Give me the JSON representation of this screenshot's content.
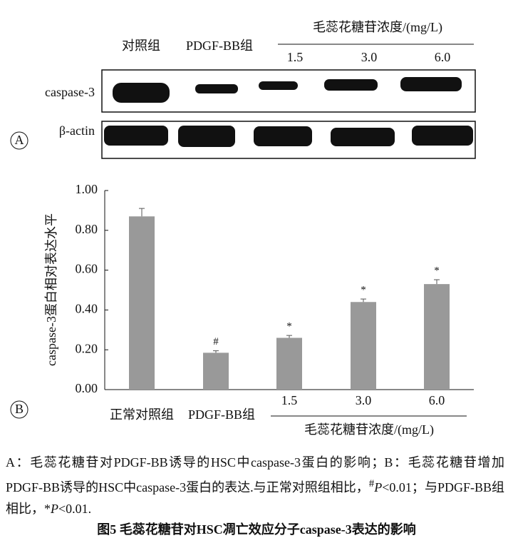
{
  "panel_a": {
    "label": "A",
    "control_label": "对照组",
    "model_label": "PDGF-BB组",
    "dose_group_label": "毛蕊花糖苷浓度/(mg/L)",
    "doses": [
      "1.5",
      "3.0",
      "6.0"
    ],
    "rows": [
      "caspase-3",
      "β-actin"
    ]
  },
  "chart_data": {
    "type": "bar",
    "panel_label": "B",
    "y_label": "caspase-3蛋白相对表达水平",
    "categories": [
      "正常对照组",
      "PDGF-BB组",
      "1.5",
      "3.0",
      "6.0"
    ],
    "group_label": "毛蕊花糖苷浓度/(mg/L)",
    "values": [
      0.87,
      0.185,
      0.26,
      0.44,
      0.53
    ],
    "errors": [
      0.04,
      0.01,
      0.012,
      0.015,
      0.022
    ],
    "markers": [
      null,
      "#",
      "*",
      "*",
      "*"
    ],
    "color": "#999999",
    "ylim": [
      0,
      1
    ],
    "yticks": [
      {
        "value": 0,
        "label": "0.00"
      },
      {
        "value": 0.2,
        "label": "0.20"
      },
      {
        "value": 0.4,
        "label": "0.40"
      },
      {
        "value": 0.6,
        "label": "0.60"
      },
      {
        "value": 0.8,
        "label": "0.80"
      },
      {
        "value": 1,
        "label": "1.00"
      }
    ]
  },
  "caption": {
    "parts": [
      "A：毛蕊花糖苷对PDGF-BB诱导的HSC中caspase-3蛋白的影响；B：毛蕊花糖苷增加PDGF-BB诱导的HSC中caspase-3蛋白的表达.与正常对照组相比，",
      "#",
      "P",
      "<0.01；与PDGF-BB组相比，*",
      "P",
      "<0.01."
    ],
    "title": "图5 毛蕊花糖苷对HSC凋亡效应分子caspase-3表达的影响"
  }
}
